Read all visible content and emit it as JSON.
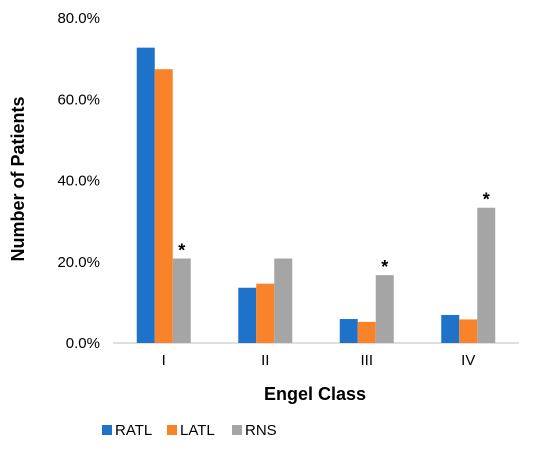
{
  "chart_data": {
    "type": "bar",
    "title": "",
    "xlabel": "Engel Class",
    "ylabel": "Number of Patients",
    "categories": [
      "I",
      "II",
      "III",
      "IV"
    ],
    "series": [
      {
        "name": "RATL",
        "color": "#1f72c9",
        "values": [
          72.7,
          13.6,
          5.9,
          6.9
        ]
      },
      {
        "name": "LATL",
        "color": "#f8832a",
        "values": [
          67.4,
          14.6,
          5.2,
          5.8
        ]
      },
      {
        "name": "RNS",
        "color": "#a5a5a5",
        "values": [
          20.8,
          20.8,
          16.7,
          33.3
        ]
      }
    ],
    "ylim": [
      0,
      80
    ],
    "y_ticks": [
      0,
      20,
      40,
      60,
      80
    ],
    "y_tick_labels": [
      "0.0%",
      "20.0%",
      "40.0%",
      "60.0%",
      "80.0%"
    ],
    "annotations": [
      {
        "text": "*",
        "series": "RNS",
        "category": "I"
      },
      {
        "text": "*",
        "series": "RNS",
        "category": "III"
      },
      {
        "text": "*",
        "series": "RNS",
        "category": "IV"
      }
    ],
    "legend_position": "bottom",
    "grid": false
  }
}
